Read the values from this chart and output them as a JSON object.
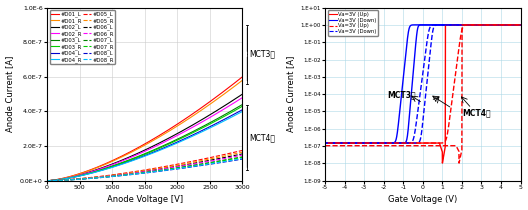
{
  "left": {
    "xlabel": "Anode Voltage [V]",
    "ylabel": "Anode Current [A]",
    "xlim": [
      0,
      3000
    ],
    "ylim": [
      0,
      1e-06
    ],
    "yticks": [
      0,
      2e-07,
      4e-07,
      6e-07,
      8e-07,
      1e-06
    ],
    "ytick_labels": [
      "0.0E+0",
      "2.0E-7",
      "4.0E-7",
      "6.0E-7",
      "8.0E-7",
      "1.0E-6"
    ],
    "xticks": [
      0,
      500,
      1000,
      1500,
      2000,
      2500,
      3000
    ],
    "mct3_label": "MCT3차",
    "mct4_label": "MCT4차",
    "solid_series": [
      {
        "label": "#D01_L",
        "color": "#FF0000",
        "scale": 0.6
      },
      {
        "label": "#D02_L",
        "color": "#000000",
        "scale": 0.5
      },
      {
        "label": "#D03_L",
        "color": "#008000",
        "scale": 0.44
      },
      {
        "label": "#D04_L",
        "color": "#0000CC",
        "scale": 0.41
      }
    ],
    "solid_r_series": [
      {
        "label": "#D01_R",
        "color": "#FF8C00",
        "scale": 0.58
      },
      {
        "label": "#D02_R",
        "color": "#FF00FF",
        "scale": 0.48
      },
      {
        "label": "#D03_R",
        "color": "#00CC00",
        "scale": 0.43
      },
      {
        "label": "#D04_R",
        "color": "#00BFFF",
        "scale": 0.4
      }
    ],
    "dashed_series": [
      {
        "label": "#D05_L",
        "color": "#FF0000",
        "scale": 0.175
      },
      {
        "label": "#D06_L",
        "color": "#000000",
        "scale": 0.155
      },
      {
        "label": "#D07_L",
        "color": "#008000",
        "scale": 0.138
      },
      {
        "label": "#D08_L",
        "color": "#0000CC",
        "scale": 0.125
      }
    ],
    "dashed_r_series": [
      {
        "label": "#D05_R",
        "color": "#FF8C00",
        "scale": 0.165
      },
      {
        "label": "#D06_R",
        "color": "#FF00FF",
        "scale": 0.148
      },
      {
        "label": "#D07_R",
        "color": "#00CC00",
        "scale": 0.135
      },
      {
        "label": "#D08_R",
        "color": "#00BFFF",
        "scale": 0.128
      }
    ]
  },
  "right": {
    "xlabel": "Gate Voltage (V)",
    "ylabel": "Anode Current [A]",
    "xlim": [
      -5,
      5
    ],
    "xticks": [
      -5,
      -4,
      -3,
      -2,
      -1,
      0,
      1,
      2,
      3,
      4,
      5
    ],
    "yticks": [
      1e-09,
      1e-08,
      1e-07,
      1e-06,
      1e-05,
      0.0001,
      0.001,
      0.01,
      0.1,
      1.0,
      10.0
    ],
    "ytick_labels": [
      "1.E-09",
      "1.E-08",
      "1.E-07",
      "1.E-06",
      "1.E-05",
      "1.E-04",
      "1.E-03",
      "1.E-02",
      "1.E-01",
      "1.E+00",
      "1.E+01"
    ],
    "mct3_label": "MCT3차",
    "mct4_label": "MCT4차"
  }
}
